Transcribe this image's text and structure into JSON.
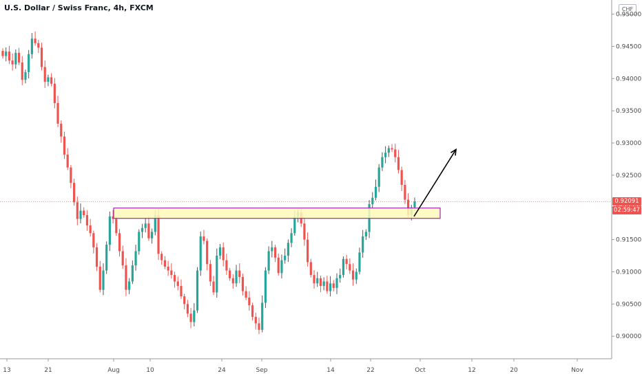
{
  "header": {
    "title": "U.S. Dollar / Swiss Franc, 4h, FXCM"
  },
  "axis": {
    "currency_label": "CHF"
  },
  "price_tag": {
    "price": "0.92091",
    "countdown": "02:59:47"
  },
  "colors": {
    "up": "#26a69a",
    "down": "#ef5350",
    "wick_up": "#4c4c4c",
    "zone_fill": "#fff9b8",
    "zone_border": "#9c27b0",
    "price_line": "#ef5350"
  },
  "chart_data": {
    "type": "candlestick",
    "ylim": [
      0.8965,
      0.9522
    ],
    "y_ticks": [
      "0.95000",
      "0.94500",
      "0.94000",
      "0.93500",
      "0.93000",
      "0.92500",
      "0.92000",
      "0.91500",
      "0.91000",
      "0.90500",
      "0.90000"
    ],
    "x_labels": [
      "13",
      "21",
      "Aug",
      "10",
      "24",
      "Sep",
      "14",
      "22",
      "Oct",
      "12",
      "20",
      "Nov"
    ],
    "current_price": 0.92091,
    "support_zone": {
      "low": 0.9183,
      "high": 0.9199,
      "from": "Aug",
      "to": "Oct"
    },
    "arrow_annotation": {
      "from_price": 0.9186,
      "to_price": 0.929,
      "direction": "up"
    },
    "series": [
      {
        "values": [
          0.9435,
          0.9442,
          0.9428,
          0.9422,
          0.944,
          0.9425,
          0.9398,
          0.941,
          0.9438,
          0.9462,
          0.9455,
          0.9448,
          0.9418,
          0.9395,
          0.9402,
          0.9392,
          0.9362,
          0.933,
          0.931,
          0.9282,
          0.9262,
          0.9238,
          0.9208,
          0.9182,
          0.9195,
          0.9188,
          0.9172,
          0.916,
          0.9138,
          0.9108,
          0.9072,
          0.9102,
          0.9142,
          0.9186,
          0.9182,
          0.916,
          0.9132,
          0.911,
          0.9072,
          0.9085,
          0.911,
          0.9132,
          0.9162,
          0.9168,
          0.9175,
          0.9152,
          0.9162,
          0.9188,
          0.9128,
          0.9118,
          0.9108,
          0.9102,
          0.9095,
          0.9085,
          0.9078,
          0.9062,
          0.905,
          0.9035,
          0.9022,
          0.904,
          0.9102,
          0.9155,
          0.9148,
          0.9112,
          0.9085,
          0.9068,
          0.9125,
          0.9138,
          0.9118,
          0.9102,
          0.909,
          0.9082,
          0.9102,
          0.9092,
          0.907,
          0.906,
          0.9048,
          0.903,
          0.902,
          0.901,
          0.9052,
          0.9102,
          0.9132,
          0.9138,
          0.9122,
          0.9098,
          0.9118,
          0.9125,
          0.9145,
          0.916,
          0.9185,
          0.9192,
          0.9175,
          0.915,
          0.9115,
          0.9095,
          0.9082,
          0.909,
          0.9078,
          0.9085,
          0.907,
          0.9082,
          0.9075,
          0.909,
          0.9095,
          0.912,
          0.9112,
          0.9102,
          0.9088,
          0.91,
          0.913,
          0.9155,
          0.9162,
          0.9205,
          0.9215,
          0.9232,
          0.9262,
          0.9278,
          0.9285,
          0.9292,
          0.929,
          0.9278,
          0.9258,
          0.9235,
          0.9212,
          0.9188,
          0.92,
          0.9209
        ]
      }
    ]
  }
}
